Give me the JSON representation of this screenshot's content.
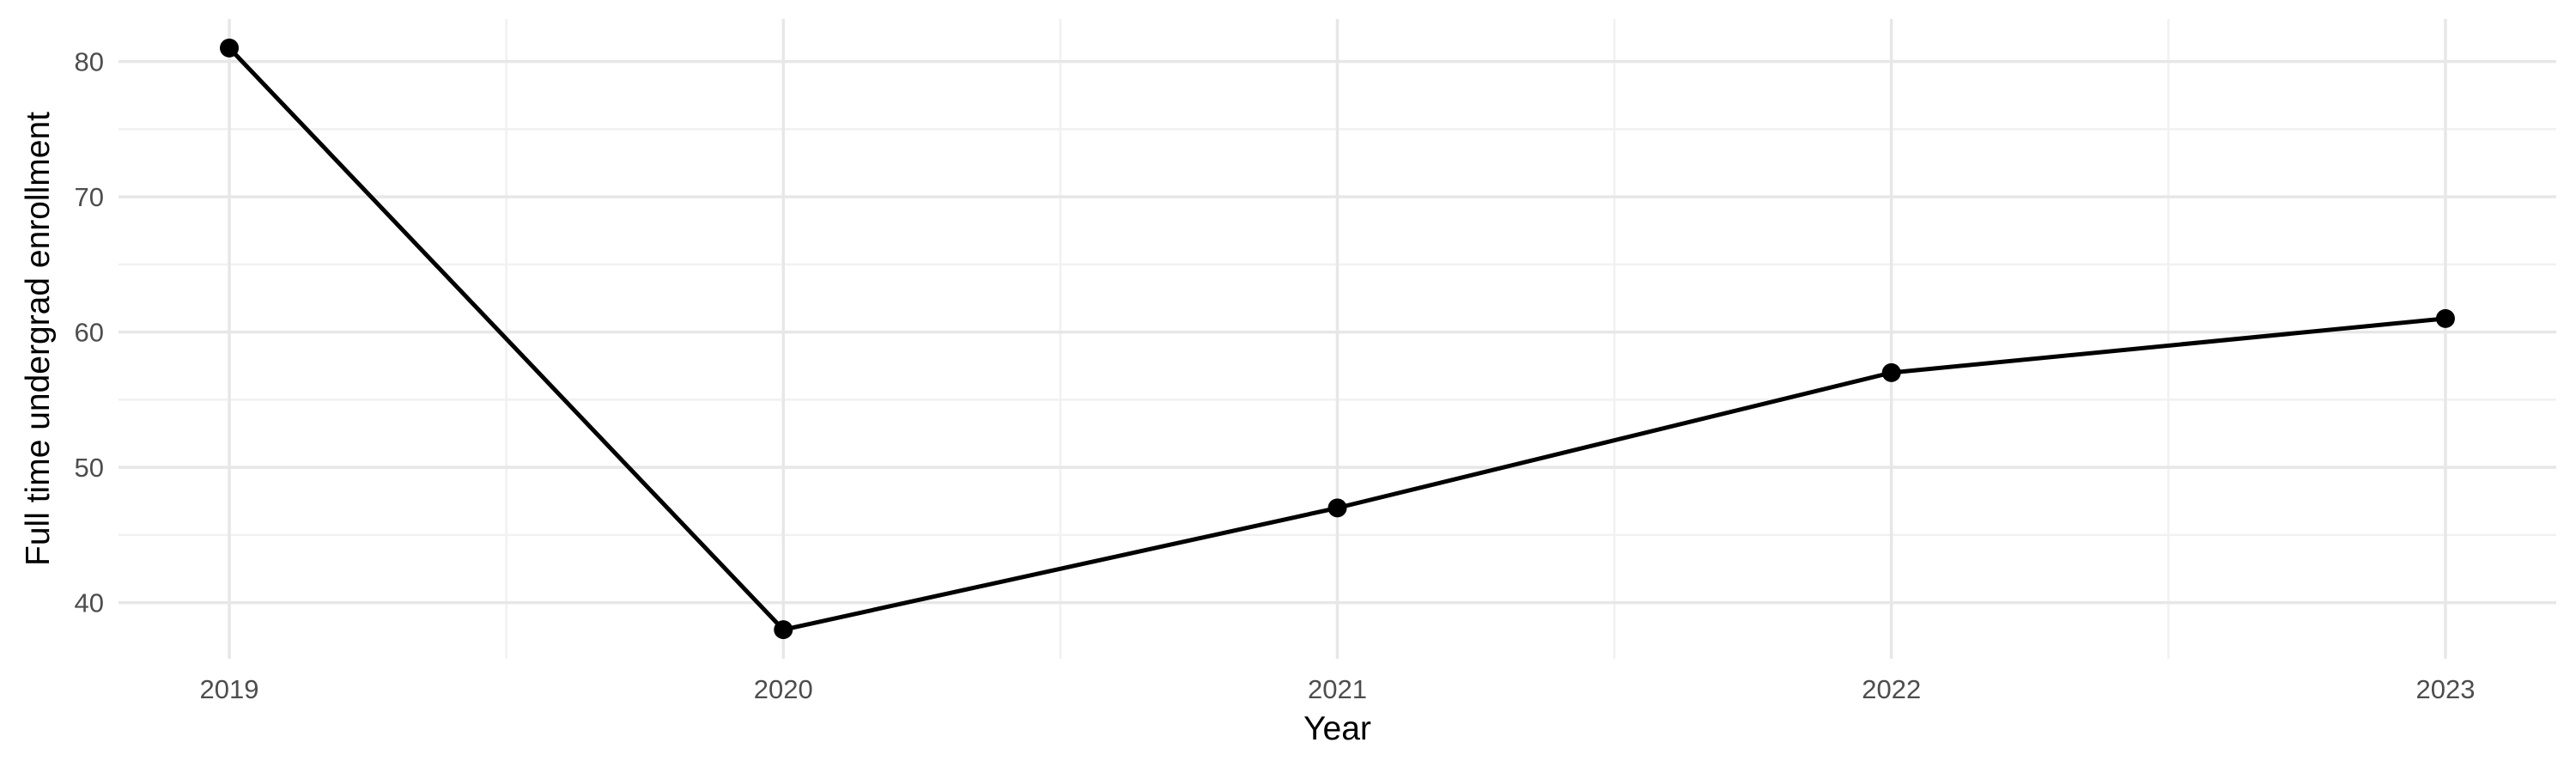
{
  "chart_data": {
    "type": "line",
    "xlabel": "Year",
    "ylabel": "Full time undergrad enrollment",
    "x": [
      2019,
      2020,
      2021,
      2022,
      2023
    ],
    "series": [
      {
        "name": "Full time undergrad enrollment",
        "values": [
          81,
          38,
          47,
          57,
          61
        ]
      }
    ],
    "x_tick_labels": [
      "2019",
      "2020",
      "2021",
      "2022",
      "2023"
    ],
    "y_tick_labels": [
      "40",
      "50",
      "60",
      "70",
      "80"
    ],
    "y_tick_values": [
      40,
      50,
      60,
      70,
      80
    ],
    "x_minor_gridlines": [
      2019.5,
      2020.5,
      2021.5,
      2022.5
    ],
    "y_minor_gridlines": [
      45,
      55,
      65,
      75
    ],
    "xlim": [
      2018.8,
      2023.2
    ],
    "ylim": [
      35.85,
      83.15
    ],
    "grid": "major-and-minor",
    "legend_position": "none",
    "style": {
      "line_color": "#000000",
      "point_color": "#000000",
      "major_grid_color": "#E7E7E7",
      "minor_grid_color": "#F1F1F1",
      "tick_label_color": "#4D4D4D",
      "axis_title_color": "#000000",
      "background_color": "#FFFFFF"
    }
  }
}
